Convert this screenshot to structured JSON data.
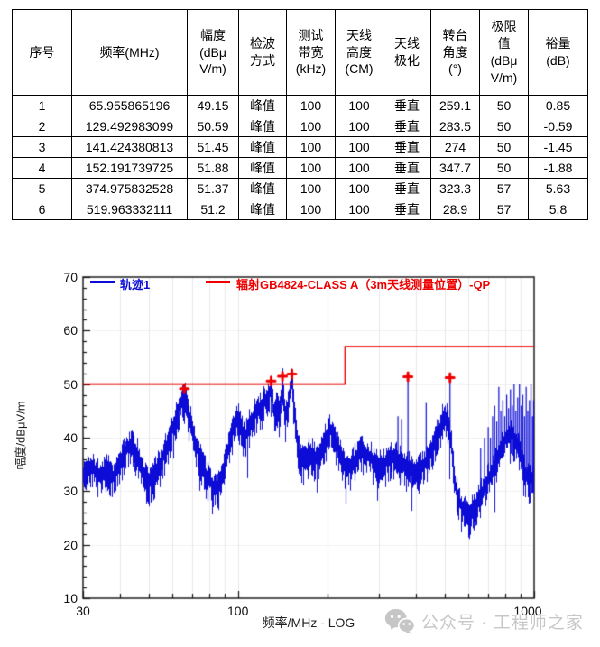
{
  "table": {
    "headers": [
      {
        "lines": [
          "序号"
        ]
      },
      {
        "lines": [
          "频率(MHz)"
        ]
      },
      {
        "lines": [
          "幅度",
          "(dBμ",
          "V/m)"
        ]
      },
      {
        "lines": [
          "检波",
          "方式"
        ]
      },
      {
        "lines": [
          "测试",
          "带宽",
          "(kHz)"
        ]
      },
      {
        "lines": [
          "天线",
          "高度",
          "(CM)"
        ]
      },
      {
        "lines": [
          "天线",
          "极化"
        ]
      },
      {
        "lines": [
          "转台",
          "角度",
          "(°)"
        ]
      },
      {
        "lines": [
          "极限",
          "值",
          "(dBμ",
          "V/m)"
        ]
      },
      {
        "lines": [
          "裕量",
          "(dB)"
        ],
        "underline_first": true,
        "underline_color": "#3b5fc0"
      }
    ],
    "rows": [
      [
        "1",
        "65.955865196",
        "49.15",
        "峰值",
        "100",
        "100",
        "垂直",
        "259.1",
        "50",
        "0.85"
      ],
      [
        "2",
        "129.492983099",
        "50.59",
        "峰值",
        "100",
        "100",
        "垂直",
        "283.5",
        "50",
        "-0.59"
      ],
      [
        "3",
        "141.424380813",
        "51.45",
        "峰值",
        "100",
        "100",
        "垂直",
        "274",
        "50",
        "-1.45"
      ],
      [
        "4",
        "152.191739725",
        "51.88",
        "峰值",
        "100",
        "100",
        "垂直",
        "347.7",
        "50",
        "-1.88"
      ],
      [
        "5",
        "374.975832528",
        "51.37",
        "峰值",
        "100",
        "100",
        "垂直",
        "323.3",
        "57",
        "5.63"
      ],
      [
        "6",
        "519.963332111",
        "51.2",
        "峰值",
        "100",
        "100",
        "垂直",
        "28.9",
        "57",
        "5.8"
      ]
    ]
  },
  "chart_data": {
    "type": "line",
    "title": "",
    "xlabel": "频率/MHz - LOG",
    "ylabel": "幅度/dBμV/m",
    "x_scale": "log",
    "xlim": [
      30,
      1000
    ],
    "ylim": [
      10,
      70
    ],
    "x_major_ticks": [
      30,
      100,
      1000
    ],
    "x_minor_ticks": [
      40,
      50,
      60,
      70,
      80,
      90,
      200,
      300,
      400,
      500,
      600,
      700,
      800,
      900
    ],
    "y_major_ticks": [
      10,
      20,
      30,
      40,
      50,
      60,
      70
    ],
    "y_minor_step": 2,
    "grid": true,
    "legend_position": "top-inside",
    "colors": {
      "trace": "#0c0cd6",
      "limit": "#ee0000",
      "marker": "#ee0000",
      "grid_v": "#e9e9e9",
      "grid_h": "#f0f0f0",
      "frame": "#2b2b2b"
    },
    "series": [
      {
        "name": "轨迹1",
        "kind": "emi-trace",
        "noise_db": 5,
        "seed": 1337,
        "envelope": [
          [
            30,
            34
          ],
          [
            32,
            35.5
          ],
          [
            34,
            34
          ],
          [
            36,
            35
          ],
          [
            38,
            33.5
          ],
          [
            40,
            36.5
          ],
          [
            42,
            39
          ],
          [
            44,
            39.5
          ],
          [
            46,
            37.5
          ],
          [
            48,
            34
          ],
          [
            50,
            32.5
          ],
          [
            52,
            34
          ],
          [
            55,
            36.5
          ],
          [
            58,
            40
          ],
          [
            61,
            44
          ],
          [
            64,
            47.5
          ],
          [
            66,
            49
          ],
          [
            68,
            45.5
          ],
          [
            71,
            41
          ],
          [
            74,
            37.5
          ],
          [
            78,
            34
          ],
          [
            82,
            32
          ],
          [
            85,
            31
          ],
          [
            88,
            33.5
          ],
          [
            92,
            38
          ],
          [
            96,
            42.5
          ],
          [
            100,
            44.5
          ],
          [
            103,
            42
          ],
          [
            106,
            41.5
          ],
          [
            110,
            44
          ],
          [
            114,
            45.5
          ],
          [
            118,
            46.5
          ],
          [
            122,
            47.5
          ],
          [
            126,
            48.5
          ],
          [
            129.5,
            50.3
          ],
          [
            132,
            45.5
          ],
          [
            135,
            47
          ],
          [
            138,
            45
          ],
          [
            141.4,
            51
          ],
          [
            144,
            44.5
          ],
          [
            148,
            48
          ],
          [
            152.2,
            51.5
          ],
          [
            155,
            45
          ],
          [
            158,
            40
          ],
          [
            162,
            37
          ],
          [
            167,
            36.5
          ],
          [
            172,
            37.5
          ],
          [
            177,
            38
          ],
          [
            182,
            37
          ],
          [
            187,
            37.5
          ],
          [
            192,
            39
          ],
          [
            198,
            41
          ],
          [
            204,
            42.5
          ],
          [
            210,
            41.5
          ],
          [
            216,
            39.5
          ],
          [
            222,
            37.5
          ],
          [
            228,
            35.5
          ],
          [
            234,
            35
          ],
          [
            242,
            36
          ],
          [
            252,
            37.5
          ],
          [
            263,
            38.5
          ],
          [
            275,
            37.5
          ],
          [
            288,
            36.5
          ],
          [
            300,
            35.5
          ],
          [
            312,
            36
          ],
          [
            325,
            37.5
          ],
          [
            338,
            37.5
          ],
          [
            350,
            36.5
          ],
          [
            362,
            35.5
          ],
          [
            375,
            35.5
          ],
          [
            388,
            35
          ],
          [
            400,
            34.5
          ],
          [
            412,
            35
          ],
          [
            425,
            36
          ],
          [
            438,
            37.5
          ],
          [
            450,
            39
          ],
          [
            462,
            40.5
          ],
          [
            475,
            42
          ],
          [
            488,
            44
          ],
          [
            500,
            45
          ],
          [
            510,
            44
          ],
          [
            518,
            42
          ],
          [
            526,
            38.5
          ],
          [
            535,
            34
          ],
          [
            545,
            31
          ],
          [
            558,
            29
          ],
          [
            572,
            27.5
          ],
          [
            588,
            26.8
          ],
          [
            605,
            26.5
          ],
          [
            622,
            27.5
          ],
          [
            640,
            28.5
          ],
          [
            658,
            30
          ],
          [
            676,
            31.5
          ],
          [
            695,
            33
          ],
          [
            715,
            34.5
          ],
          [
            735,
            36
          ],
          [
            755,
            37.5
          ],
          [
            775,
            39
          ],
          [
            795,
            40.5
          ],
          [
            815,
            41.5
          ],
          [
            835,
            42
          ],
          [
            855,
            41
          ],
          [
            875,
            39.5
          ],
          [
            895,
            37.5
          ],
          [
            915,
            35.5
          ],
          [
            935,
            34
          ],
          [
            955,
            33
          ],
          [
            975,
            33.5
          ],
          [
            1000,
            33
          ]
        ],
        "spikes": [
          [
            347,
            44
          ],
          [
            357,
            43.5
          ],
          [
            375,
            51.37
          ],
          [
            432,
            46.5
          ],
          [
            520,
            51.2
          ],
          [
            660,
            38
          ],
          [
            680,
            40
          ],
          [
            700,
            42
          ],
          [
            712,
            40
          ],
          [
            724,
            44
          ],
          [
            736,
            46
          ],
          [
            748,
            43
          ],
          [
            760,
            49.5
          ],
          [
            772,
            45
          ],
          [
            784,
            47
          ],
          [
            796,
            44
          ],
          [
            808,
            48
          ],
          [
            820,
            45.5
          ],
          [
            832,
            49
          ],
          [
            844,
            46
          ],
          [
            856,
            50
          ],
          [
            868,
            45
          ],
          [
            880,
            47.5
          ],
          [
            892,
            50
          ],
          [
            904,
            46
          ],
          [
            916,
            48
          ],
          [
            928,
            44
          ],
          [
            940,
            49.5
          ],
          [
            952,
            45
          ],
          [
            964,
            47
          ],
          [
            976,
            50
          ],
          [
            988,
            44
          ],
          [
            996,
            47
          ]
        ]
      },
      {
        "name": "辐射GB4824-CLASS A（3m天线测量位置）-QP",
        "kind": "limit",
        "points": [
          [
            30,
            50
          ],
          [
            230,
            50
          ],
          [
            230,
            57
          ],
          [
            1000,
            57
          ]
        ]
      }
    ],
    "markers": {
      "symbol": "+",
      "points": [
        [
          65.955865196,
          49.15
        ],
        [
          129.492983099,
          50.59
        ],
        [
          141.424380813,
          51.45
        ],
        [
          152.191739725,
          51.88
        ],
        [
          374.975832528,
          51.37
        ],
        [
          519.963332111,
          51.2
        ]
      ]
    }
  },
  "watermark": {
    "text": "公众号 · 工程师之家"
  }
}
